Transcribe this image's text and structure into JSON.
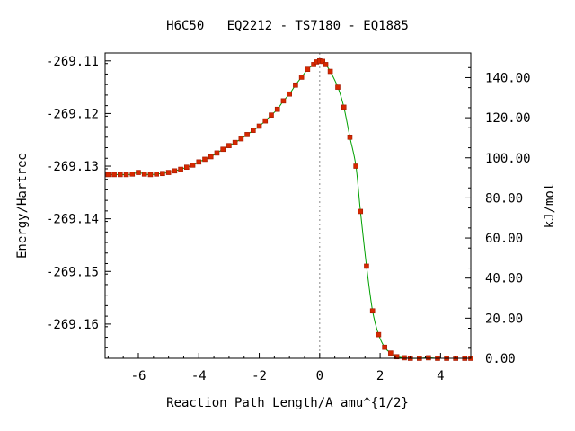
{
  "chart_data": {
    "type": "line",
    "title": "H6C50   EQ2212 - TS7180 - EQ1885",
    "xlabel": "Reaction Path Length/A amu^{1/2}",
    "ylabel": "Energy/Hartree",
    "y2label": "kJ/mol",
    "xlim": [
      -7.1,
      5.0
    ],
    "ylim": [
      -269.1665,
      -269.1085
    ],
    "y2lim": [
      0.0,
      152.3
    ],
    "x_ticks": [
      "-6",
      "-4",
      "-2",
      "0",
      "2",
      "4"
    ],
    "x_tick_values": [
      -6,
      -4,
      -2,
      0,
      2,
      4
    ],
    "y_ticks": [
      "-269.11",
      "-269.12",
      "-269.13",
      "-269.14",
      "-269.15",
      "-269.16"
    ],
    "y_tick_values": [
      -269.11,
      -269.12,
      -269.13,
      -269.14,
      -269.15,
      -269.16
    ],
    "y2_ticks": [
      "0.00",
      "20.00",
      "40.00",
      "60.00",
      "80.00",
      "100.00",
      "120.00",
      "140.00"
    ],
    "y2_tick_values": [
      0,
      20,
      40,
      60,
      80,
      100,
      120,
      140
    ],
    "ts_marker_x": 0.0,
    "grid": false,
    "legend": "none",
    "colors": {
      "irc_points": "#d62800",
      "irc_point_edge": "#a01800",
      "spline": "#00a000",
      "ts_line": "#888888",
      "axes": "#000000"
    },
    "series": [
      {
        "marker": "square",
        "x": [
          -7.0,
          -6.8,
          -6.6,
          -6.4,
          -6.2,
          -6.0,
          -5.8,
          -5.6,
          -5.4,
          -5.2,
          -5.0,
          -4.8,
          -4.6,
          -4.4,
          -4.2,
          -4.0,
          -3.8,
          -3.6,
          -3.4,
          -3.2,
          -3.0,
          -2.8,
          -2.6,
          -2.4,
          -2.2,
          -2.0,
          -1.8,
          -1.6,
          -1.4,
          -1.2,
          -1.0,
          -0.8,
          -0.6,
          -0.4,
          -0.2,
          -0.1,
          0.0,
          0.1,
          0.2,
          0.35,
          0.6,
          0.8,
          1.0,
          1.2,
          1.35,
          1.55,
          1.75,
          1.95,
          2.15,
          2.35,
          2.55,
          2.8,
          3.0,
          3.3,
          3.6,
          3.9,
          4.2,
          4.5,
          4.8,
          5.0
        ],
        "y": [
          -269.1316,
          -269.1316,
          -269.1316,
          -269.1316,
          -269.1315,
          -269.1312,
          -269.1315,
          -269.1316,
          -269.1315,
          -269.1314,
          -269.1312,
          -269.1309,
          -269.1306,
          -269.1302,
          -269.1298,
          -269.1292,
          -269.1287,
          -269.1282,
          -269.1275,
          -269.1268,
          -269.1261,
          -269.1255,
          -269.1248,
          -269.124,
          -269.1232,
          -269.1224,
          -269.1214,
          -269.1203,
          -269.1192,
          -269.1176,
          -269.1163,
          -269.1146,
          -269.1131,
          -269.1116,
          -269.1107,
          -269.1102,
          -269.11,
          -269.1101,
          -269.1107,
          -269.112,
          -269.115,
          -269.1188,
          -269.1245,
          -269.13,
          -269.1386,
          -269.149,
          -269.1575,
          -269.162,
          -269.1644,
          -269.1655,
          -269.1662,
          -269.1664,
          -269.1665,
          -269.1665,
          -269.1664,
          -269.1665,
          -269.1665,
          -269.1665,
          -269.1665,
          -269.1665
        ]
      }
    ]
  }
}
